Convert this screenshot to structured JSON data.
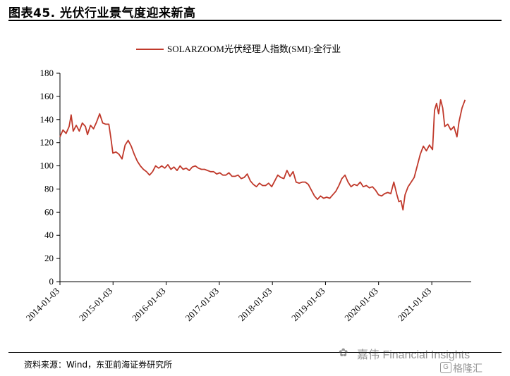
{
  "page": {
    "title": "图表45.  光伏行业景气度迎来新高",
    "source": "资料来源：Wind，东亚前海证券研究所",
    "watermark_line1": "嘉伟 Financial Insights",
    "watermark_line2": "格隆汇",
    "watermark_icon": "wechat-icon",
    "watermark_icon2": "glh-logo-icon"
  },
  "chart_data": {
    "type": "line",
    "series": [
      {
        "name": "SOLARZOOM光伏经理人指数(SMI):全行业",
        "color": "#c0392b",
        "points": [
          [
            "2014-01-03",
            125
          ],
          [
            "2014-01-24",
            131
          ],
          [
            "2014-02-14",
            128
          ],
          [
            "2014-03-07",
            134
          ],
          [
            "2014-03-21",
            144
          ],
          [
            "2014-04-04",
            130
          ],
          [
            "2014-04-25",
            135
          ],
          [
            "2014-05-16",
            130
          ],
          [
            "2014-06-06",
            137
          ],
          [
            "2014-06-27",
            134
          ],
          [
            "2014-07-11",
            127
          ],
          [
            "2014-08-01",
            135
          ],
          [
            "2014-08-22",
            132
          ],
          [
            "2014-09-12",
            138
          ],
          [
            "2014-10-03",
            145
          ],
          [
            "2014-10-24",
            137
          ],
          [
            "2014-11-14",
            136
          ],
          [
            "2014-12-05",
            136
          ],
          [
            "2014-12-19",
            124
          ],
          [
            "2015-01-02",
            111
          ],
          [
            "2015-01-23",
            112
          ],
          [
            "2015-02-13",
            110
          ],
          [
            "2015-03-06",
            106
          ],
          [
            "2015-03-27",
            118
          ],
          [
            "2015-04-17",
            122
          ],
          [
            "2015-05-08",
            117
          ],
          [
            "2015-05-29",
            110
          ],
          [
            "2015-06-19",
            104
          ],
          [
            "2015-07-10",
            100
          ],
          [
            "2015-07-31",
            97
          ],
          [
            "2015-08-21",
            95
          ],
          [
            "2015-09-11",
            92
          ],
          [
            "2015-10-02",
            95
          ],
          [
            "2015-10-23",
            100
          ],
          [
            "2015-11-13",
            98
          ],
          [
            "2015-12-04",
            100
          ],
          [
            "2015-12-25",
            98
          ],
          [
            "2016-01-15",
            101
          ],
          [
            "2016-02-05",
            97
          ],
          [
            "2016-02-26",
            99
          ],
          [
            "2016-03-18",
            96
          ],
          [
            "2016-04-08",
            100
          ],
          [
            "2016-04-29",
            97
          ],
          [
            "2016-05-20",
            98
          ],
          [
            "2016-06-10",
            96
          ],
          [
            "2016-07-01",
            99
          ],
          [
            "2016-07-22",
            100
          ],
          [
            "2016-08-12",
            98
          ],
          [
            "2016-09-02",
            97
          ],
          [
            "2016-09-23",
            97
          ],
          [
            "2016-10-14",
            96
          ],
          [
            "2016-11-04",
            95
          ],
          [
            "2016-11-25",
            95
          ],
          [
            "2016-12-16",
            93
          ],
          [
            "2017-01-06",
            94
          ],
          [
            "2017-01-27",
            92
          ],
          [
            "2017-02-17",
            92
          ],
          [
            "2017-03-10",
            94
          ],
          [
            "2017-03-31",
            91
          ],
          [
            "2017-04-21",
            91
          ],
          [
            "2017-05-12",
            92
          ],
          [
            "2017-06-02",
            89
          ],
          [
            "2017-06-23",
            90
          ],
          [
            "2017-07-14",
            93
          ],
          [
            "2017-08-04",
            87
          ],
          [
            "2017-08-25",
            84
          ],
          [
            "2017-09-15",
            82
          ],
          [
            "2017-10-06",
            85
          ],
          [
            "2017-10-27",
            83
          ],
          [
            "2017-11-17",
            83
          ],
          [
            "2017-12-08",
            85
          ],
          [
            "2017-12-29",
            82
          ],
          [
            "2018-01-19",
            87
          ],
          [
            "2018-02-09",
            92
          ],
          [
            "2018-03-02",
            90
          ],
          [
            "2018-03-23",
            89
          ],
          [
            "2018-04-13",
            96
          ],
          [
            "2018-05-04",
            91
          ],
          [
            "2018-05-25",
            95
          ],
          [
            "2018-06-15",
            86
          ],
          [
            "2018-07-06",
            85
          ],
          [
            "2018-07-27",
            86
          ],
          [
            "2018-08-17",
            86
          ],
          [
            "2018-09-07",
            84
          ],
          [
            "2018-09-28",
            79
          ],
          [
            "2018-10-19",
            74
          ],
          [
            "2018-11-09",
            71
          ],
          [
            "2018-11-30",
            74
          ],
          [
            "2018-12-21",
            72
          ],
          [
            "2019-01-11",
            73
          ],
          [
            "2019-02-01",
            72
          ],
          [
            "2019-02-22",
            75
          ],
          [
            "2019-03-15",
            78
          ],
          [
            "2019-04-05",
            83
          ],
          [
            "2019-04-26",
            89
          ],
          [
            "2019-05-17",
            92
          ],
          [
            "2019-06-07",
            86
          ],
          [
            "2019-06-28",
            82
          ],
          [
            "2019-07-19",
            84
          ],
          [
            "2019-08-09",
            83
          ],
          [
            "2019-08-30",
            86
          ],
          [
            "2019-09-20",
            82
          ],
          [
            "2019-10-11",
            83
          ],
          [
            "2019-11-01",
            81
          ],
          [
            "2019-11-22",
            82
          ],
          [
            "2019-12-13",
            79
          ],
          [
            "2020-01-03",
            75
          ],
          [
            "2020-01-24",
            74
          ],
          [
            "2020-02-14",
            76
          ],
          [
            "2020-03-06",
            77
          ],
          [
            "2020-03-27",
            76
          ],
          [
            "2020-04-17",
            86
          ],
          [
            "2020-05-08",
            75
          ],
          [
            "2020-05-22",
            69
          ],
          [
            "2020-06-05",
            70
          ],
          [
            "2020-06-19",
            62
          ],
          [
            "2020-07-03",
            75
          ],
          [
            "2020-07-24",
            82
          ],
          [
            "2020-08-14",
            86
          ],
          [
            "2020-09-04",
            90
          ],
          [
            "2020-09-25",
            100
          ],
          [
            "2020-10-16",
            110
          ],
          [
            "2020-11-06",
            117
          ],
          [
            "2020-11-27",
            113
          ],
          [
            "2020-12-18",
            118
          ],
          [
            "2021-01-08",
            114
          ],
          [
            "2021-01-22",
            148
          ],
          [
            "2021-02-05",
            154
          ],
          [
            "2021-02-19",
            145
          ],
          [
            "2021-03-05",
            157
          ],
          [
            "2021-03-19",
            150
          ],
          [
            "2021-04-02",
            134
          ],
          [
            "2021-04-23",
            136
          ],
          [
            "2021-05-14",
            131
          ],
          [
            "2021-06-04",
            134
          ],
          [
            "2021-06-25",
            125
          ],
          [
            "2021-07-09",
            138
          ],
          [
            "2021-07-30",
            150
          ],
          [
            "2021-08-20",
            157
          ]
        ]
      }
    ],
    "x_ticks": [
      "2014-01-03",
      "2015-01-03",
      "2016-01-03",
      "2017-01-03",
      "2018-01-03",
      "2019-01-03",
      "2020-01-03",
      "2021-01-03"
    ],
    "y_ticks": [
      0,
      20,
      40,
      60,
      80,
      100,
      120,
      140,
      160,
      180
    ],
    "ylim": [
      0,
      180
    ],
    "xlim": [
      "2014-01-03",
      "2021-10-01"
    ],
    "grid": false,
    "legend_position": "top-center"
  }
}
